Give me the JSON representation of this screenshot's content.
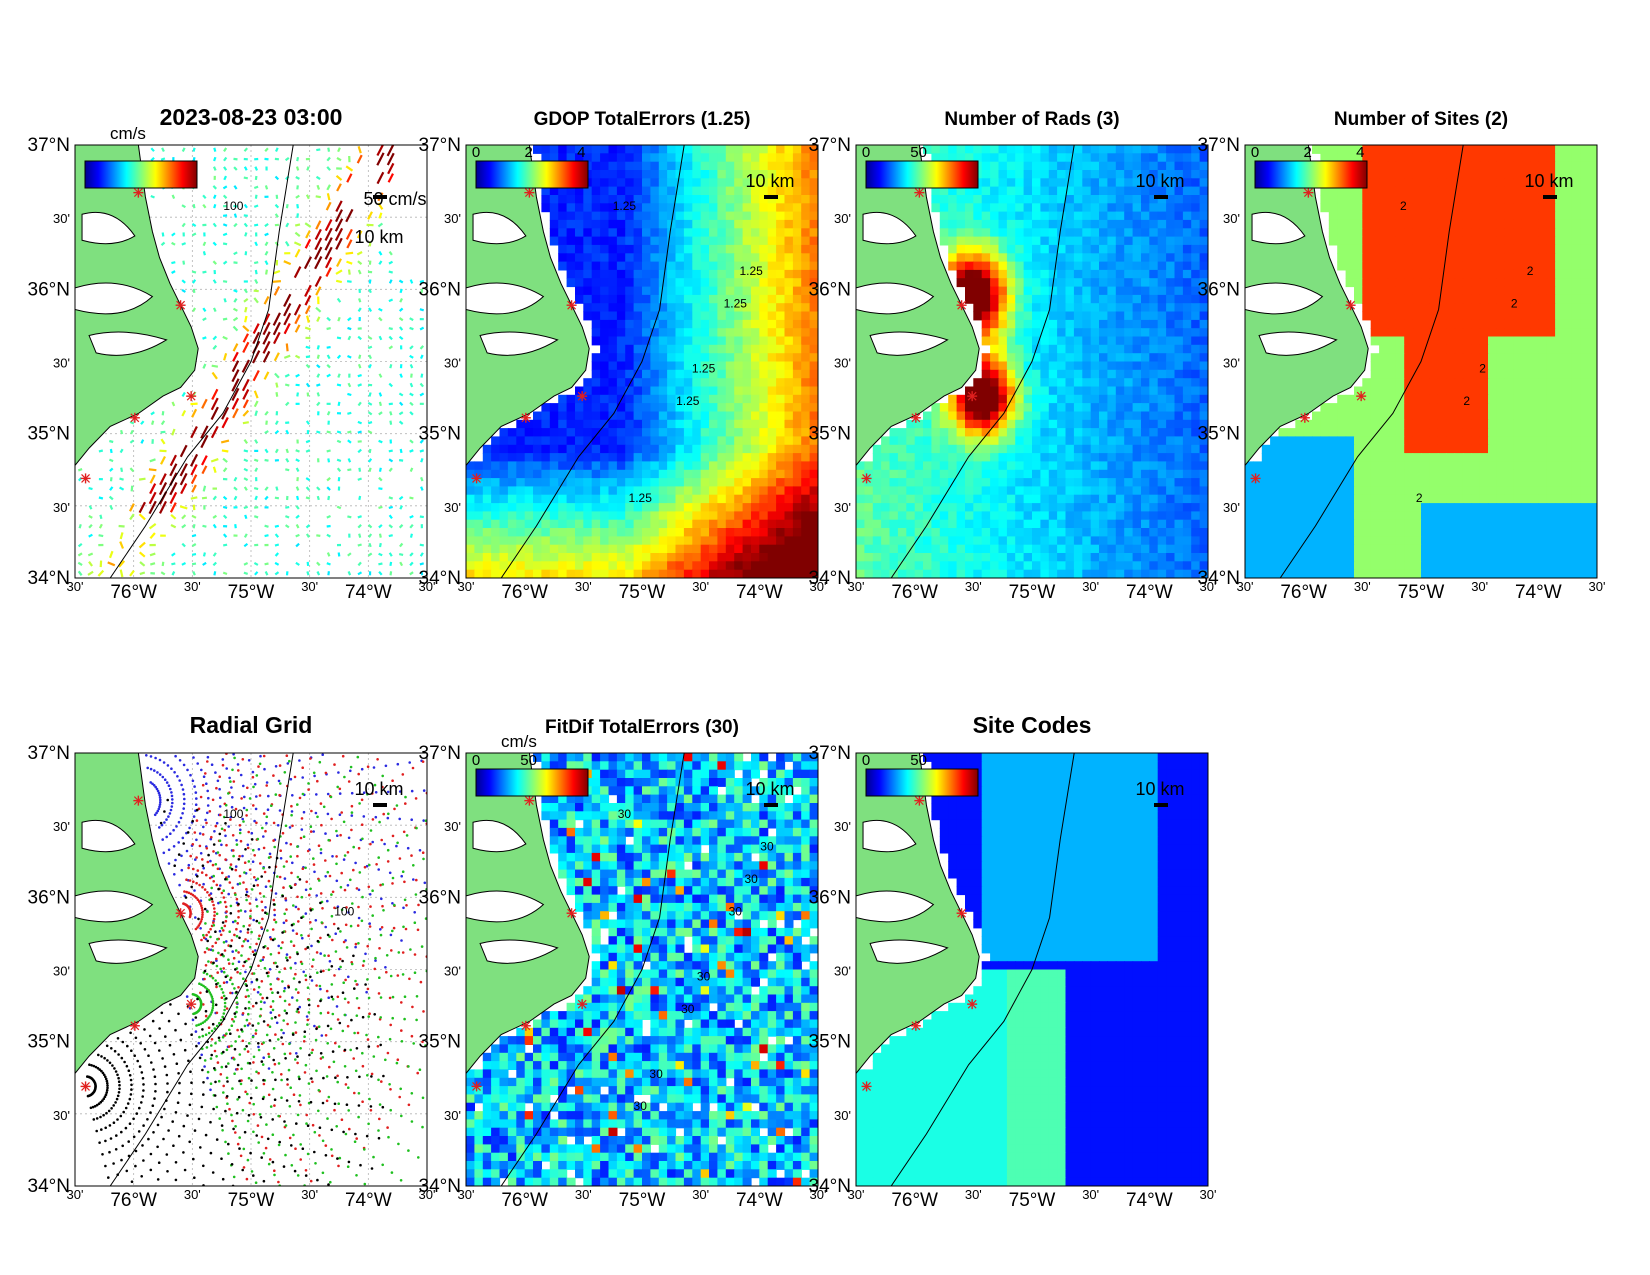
{
  "figure": {
    "timestamp": "2023-08-23 03:00"
  },
  "axes_labels": {
    "lat": [
      "37°N",
      "30'",
      "36°N",
      "30'",
      "35°N",
      "30'",
      "34°N"
    ],
    "lon": [
      "30'",
      "76°W",
      "30'",
      "75°W",
      "30'",
      "74°W",
      "30'"
    ]
  },
  "panels": [
    {
      "id": "currents",
      "title": "2023-08-23 03:00",
      "colorbar": {
        "unit": "cm/s",
        "ticks": []
      },
      "scale_labels": [
        "50 cm/s",
        "10 km"
      ],
      "contour_labels": [
        "100"
      ],
      "kind": "vectors"
    },
    {
      "id": "gdop",
      "title": "GDOP TotalErrors (1.25)",
      "colorbar": {
        "unit": "",
        "ticks": [
          "0",
          "2",
          "4"
        ]
      },
      "scale_labels": [
        "10 km"
      ],
      "contour_labels": [
        "1.25",
        "1.25",
        "1.25",
        "1.25",
        "1.25",
        "1.25"
      ],
      "kind": "gdop"
    },
    {
      "id": "rads",
      "title": "Number of Rads (3)",
      "colorbar": {
        "unit": "",
        "ticks": [
          "0",
          "50"
        ]
      },
      "scale_labels": [
        "10 km"
      ],
      "contour_labels": [],
      "kind": "rads"
    },
    {
      "id": "sites",
      "title": "Number of Sites (2)",
      "colorbar": {
        "unit": "",
        "ticks": [
          "0",
          "2",
          "4"
        ]
      },
      "scale_labels": [
        "10 km"
      ],
      "contour_labels": [
        "2",
        "2",
        "2",
        "2",
        "2",
        "2"
      ],
      "kind": "sites"
    },
    {
      "id": "radial",
      "title": "Radial Grid",
      "colorbar": null,
      "scale_labels": [
        "10 km"
      ],
      "contour_labels": [
        "100",
        "100"
      ],
      "kind": "radial"
    },
    {
      "id": "fitdif",
      "title": "FitDif TotalErrors (30)",
      "colorbar": {
        "unit": "cm/s",
        "ticks": [
          "0",
          "50"
        ]
      },
      "scale_labels": [
        "10 km"
      ],
      "contour_labels": [
        "30",
        "30",
        "30",
        "30",
        "30",
        "30",
        "30",
        "30"
      ],
      "kind": "fitdif"
    },
    {
      "id": "codes",
      "title": "Site Codes",
      "colorbar": {
        "unit": "",
        "ticks": [
          "0",
          "50"
        ]
      },
      "scale_labels": [
        "10 km"
      ],
      "contour_labels": [],
      "kind": "codes"
    }
  ],
  "colors": {
    "land": "#7fe07f",
    "site_marker": "#e0201f",
    "grid_dot": "#9a9a9a"
  }
}
